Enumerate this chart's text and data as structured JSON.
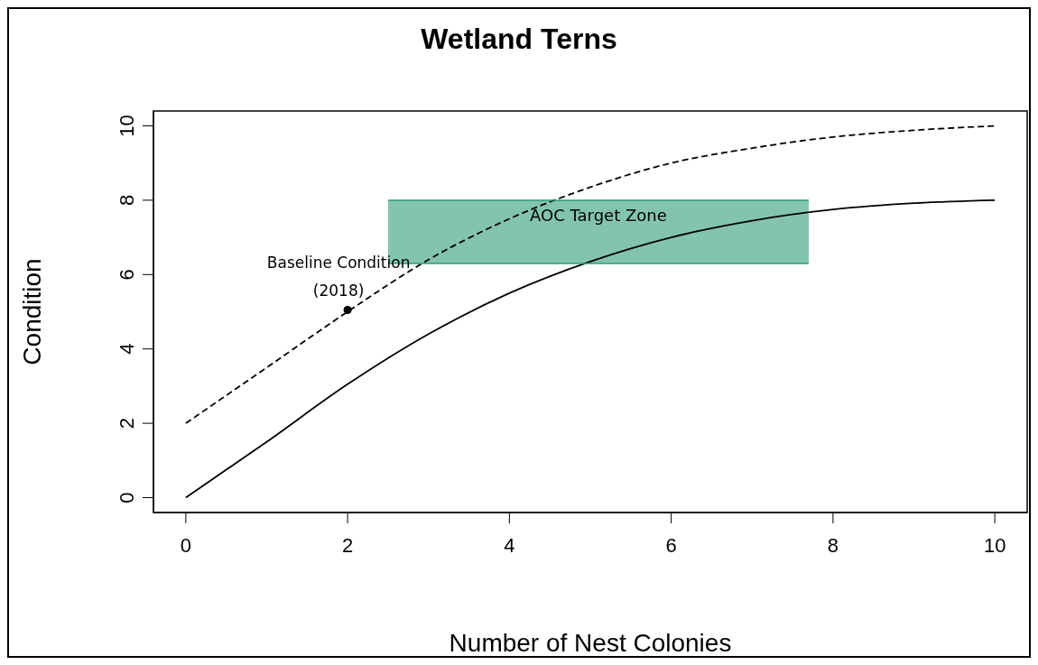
{
  "chart_data": {
    "type": "line",
    "title": "Wetland Terns",
    "xlabel": "Number of Nest Colonies",
    "ylabel": "Condition",
    "xlim": [
      -0.4,
      10.4
    ],
    "ylim": [
      -0.4,
      10.4
    ],
    "xticks": [
      0,
      2,
      4,
      6,
      8,
      10
    ],
    "yticks": [
      0,
      2,
      4,
      6,
      8,
      10
    ],
    "series": [
      {
        "color": "#000000",
        "line_style": "solid",
        "x": [
          0,
          1,
          2,
          3,
          4,
          5,
          6,
          7,
          8,
          9,
          10
        ],
        "values": [
          0,
          1.5,
          3.05,
          4.4,
          5.5,
          6.35,
          7.0,
          7.45,
          7.75,
          7.92,
          8.0
        ]
      },
      {
        "color": "#000000",
        "line_style": "dashed",
        "x": [
          0,
          1,
          2,
          3,
          4,
          5,
          6,
          7,
          8,
          9,
          10
        ],
        "values": [
          2,
          3.5,
          5.0,
          6.4,
          7.5,
          8.35,
          9.0,
          9.4,
          9.7,
          9.88,
          10.0
        ]
      },
      {
        "type": "line",
        "name": "AOC Target Zone",
        "color": "#2e9c78",
        "x": [
          2.5,
          7.7
        ],
        "values": [
          8.0,
          8.0
        ],
        "lower": [
          6.3,
          6.3
        ],
        "upper": [
          8.0,
          8.0
        ]
      },
      {
        "type": "scatter",
        "color": "#000000",
        "marker": "circle",
        "x": [
          2
        ],
        "values": [
          5.05
        ]
      }
    ],
    "annotations": [
      {
        "text": "Baseline Condition\n(2018)",
        "x": 2,
        "y": 5.05
      }
    ],
    "marker": "none",
    "grid": false,
    "legend": false
  }
}
